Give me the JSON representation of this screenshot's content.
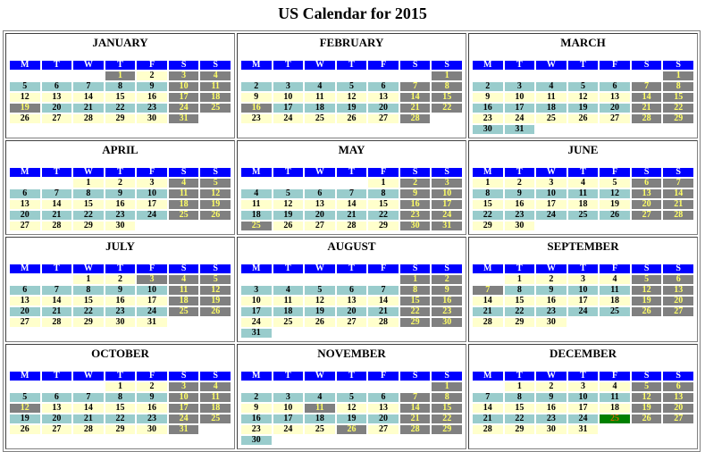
{
  "title": "US Calendar for 2015",
  "weekday_headers": [
    "M",
    "T",
    "W",
    "T",
    "F",
    "S",
    "S"
  ],
  "colors": {
    "header": "#0000ff",
    "row_a": "#ffffcc",
    "row_b": "#99cccc",
    "weekend_holiday": "#808080",
    "weekend_text": "#ffff66",
    "christmas": "#008000"
  },
  "months": [
    {
      "name": "JANUARY",
      "holidays": [
        1,
        19
      ],
      "weeks": [
        [
          "",
          "",
          "",
          "1",
          "2",
          "3",
          "4"
        ],
        [
          "5",
          "6",
          "7",
          "8",
          "9",
          "10",
          "11"
        ],
        [
          "12",
          "13",
          "14",
          "15",
          "16",
          "17",
          "18"
        ],
        [
          "19",
          "20",
          "21",
          "22",
          "23",
          "24",
          "25"
        ],
        [
          "26",
          "27",
          "28",
          "29",
          "30",
          "31",
          ""
        ]
      ]
    },
    {
      "name": "FEBRUARY",
      "holidays": [
        16
      ],
      "weeks": [
        [
          "",
          "",
          "",
          "",
          "",
          "",
          "1"
        ],
        [
          "2",
          "3",
          "4",
          "5",
          "6",
          "7",
          "8"
        ],
        [
          "9",
          "10",
          "11",
          "12",
          "13",
          "14",
          "15"
        ],
        [
          "16",
          "17",
          "18",
          "19",
          "20",
          "21",
          "22"
        ],
        [
          "23",
          "24",
          "25",
          "26",
          "27",
          "28",
          ""
        ]
      ]
    },
    {
      "name": "MARCH",
      "holidays": [],
      "weeks": [
        [
          "",
          "",
          "",
          "",
          "",
          "",
          "1"
        ],
        [
          "2",
          "3",
          "4",
          "5",
          "6",
          "7",
          "8"
        ],
        [
          "9",
          "10",
          "11",
          "12",
          "13",
          "14",
          "15"
        ],
        [
          "16",
          "17",
          "18",
          "19",
          "20",
          "21",
          "22"
        ],
        [
          "23",
          "24",
          "25",
          "26",
          "27",
          "28",
          "29"
        ],
        [
          "30",
          "31",
          "",
          "",
          "",
          "",
          ""
        ]
      ]
    },
    {
      "name": "APRIL",
      "holidays": [],
      "weeks": [
        [
          "",
          "",
          "1",
          "2",
          "3",
          "4",
          "5"
        ],
        [
          "6",
          "7",
          "8",
          "9",
          "10",
          "11",
          "12"
        ],
        [
          "13",
          "14",
          "15",
          "16",
          "17",
          "18",
          "19"
        ],
        [
          "20",
          "21",
          "22",
          "23",
          "24",
          "25",
          "26"
        ],
        [
          "27",
          "28",
          "29",
          "30",
          "",
          "",
          ""
        ]
      ]
    },
    {
      "name": "MAY",
      "holidays": [
        25
      ],
      "weeks": [
        [
          "",
          "",
          "",
          "",
          "1",
          "2",
          "3"
        ],
        [
          "4",
          "5",
          "6",
          "7",
          "8",
          "9",
          "10"
        ],
        [
          "11",
          "12",
          "13",
          "14",
          "15",
          "16",
          "17"
        ],
        [
          "18",
          "19",
          "20",
          "21",
          "22",
          "23",
          "24"
        ],
        [
          "25",
          "26",
          "27",
          "28",
          "29",
          "30",
          "31"
        ]
      ]
    },
    {
      "name": "JUNE",
      "holidays": [],
      "weeks": [
        [
          "1",
          "2",
          "3",
          "4",
          "5",
          "6",
          "7"
        ],
        [
          "8",
          "9",
          "10",
          "11",
          "12",
          "13",
          "14"
        ],
        [
          "15",
          "16",
          "17",
          "18",
          "19",
          "20",
          "21"
        ],
        [
          "22",
          "23",
          "24",
          "25",
          "26",
          "27",
          "28"
        ],
        [
          "29",
          "30",
          "",
          "",
          "",
          "",
          ""
        ]
      ]
    },
    {
      "name": "JULY",
      "holidays": [
        3
      ],
      "weeks": [
        [
          "",
          "",
          "1",
          "2",
          "3",
          "4",
          "5"
        ],
        [
          "6",
          "7",
          "8",
          "9",
          "10",
          "11",
          "12"
        ],
        [
          "13",
          "14",
          "15",
          "16",
          "17",
          "18",
          "19"
        ],
        [
          "20",
          "21",
          "22",
          "23",
          "24",
          "25",
          "26"
        ],
        [
          "27",
          "28",
          "29",
          "30",
          "31",
          "",
          ""
        ]
      ]
    },
    {
      "name": "AUGUST",
      "holidays": [],
      "weeks": [
        [
          "",
          "",
          "",
          "",
          "",
          "1",
          "2"
        ],
        [
          "3",
          "4",
          "5",
          "6",
          "7",
          "8",
          "9"
        ],
        [
          "10",
          "11",
          "12",
          "13",
          "14",
          "15",
          "16"
        ],
        [
          "17",
          "18",
          "19",
          "20",
          "21",
          "22",
          "23"
        ],
        [
          "24",
          "25",
          "26",
          "27",
          "28",
          "29",
          "30"
        ],
        [
          "31",
          "",
          "",
          "",
          "",
          "",
          ""
        ]
      ]
    },
    {
      "name": "SEPTEMBER",
      "holidays": [
        7
      ],
      "weeks": [
        [
          "",
          "1",
          "2",
          "3",
          "4",
          "5",
          "6"
        ],
        [
          "7",
          "8",
          "9",
          "10",
          "11",
          "12",
          "13"
        ],
        [
          "14",
          "15",
          "16",
          "17",
          "18",
          "19",
          "20"
        ],
        [
          "21",
          "22",
          "23",
          "24",
          "25",
          "26",
          "27"
        ],
        [
          "28",
          "29",
          "30",
          "",
          "",
          "",
          ""
        ]
      ]
    },
    {
      "name": "OCTOBER",
      "holidays": [
        12
      ],
      "weeks": [
        [
          "",
          "",
          "",
          "1",
          "2",
          "3",
          "4"
        ],
        [
          "5",
          "6",
          "7",
          "8",
          "9",
          "10",
          "11"
        ],
        [
          "12",
          "13",
          "14",
          "15",
          "16",
          "17",
          "18"
        ],
        [
          "19",
          "20",
          "21",
          "22",
          "23",
          "24",
          "25"
        ],
        [
          "26",
          "27",
          "28",
          "29",
          "30",
          "31",
          ""
        ]
      ]
    },
    {
      "name": "NOVEMBER",
      "holidays": [
        11,
        26
      ],
      "weeks": [
        [
          "",
          "",
          "",
          "",
          "",
          "",
          "1"
        ],
        [
          "2",
          "3",
          "4",
          "5",
          "6",
          "7",
          "8"
        ],
        [
          "9",
          "10",
          "11",
          "12",
          "13",
          "14",
          "15"
        ],
        [
          "16",
          "17",
          "18",
          "19",
          "20",
          "21",
          "22"
        ],
        [
          "23",
          "24",
          "25",
          "26",
          "27",
          "28",
          "29"
        ],
        [
          "30",
          "",
          "",
          "",
          "",
          "",
          ""
        ]
      ]
    },
    {
      "name": "DECEMBER",
      "holidays": [],
      "christmas": 25,
      "weeks": [
        [
          "",
          "1",
          "2",
          "3",
          "4",
          "5",
          "6"
        ],
        [
          "7",
          "8",
          "9",
          "10",
          "11",
          "12",
          "13"
        ],
        [
          "14",
          "15",
          "16",
          "17",
          "18",
          "19",
          "20"
        ],
        [
          "21",
          "22",
          "23",
          "24",
          "25",
          "26",
          "27"
        ],
        [
          "28",
          "29",
          "30",
          "31",
          "",
          "",
          ""
        ]
      ]
    }
  ]
}
